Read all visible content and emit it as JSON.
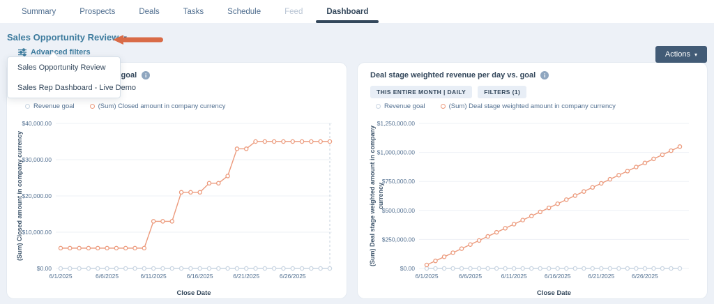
{
  "nav": {
    "tabs": [
      {
        "label": "Summary",
        "state": "normal"
      },
      {
        "label": "Prospects",
        "state": "normal"
      },
      {
        "label": "Deals",
        "state": "normal"
      },
      {
        "label": "Tasks",
        "state": "normal"
      },
      {
        "label": "Schedule",
        "state": "normal"
      },
      {
        "label": "Feed",
        "state": "disabled"
      },
      {
        "label": "Dashboard",
        "state": "active"
      }
    ]
  },
  "toolbar": {
    "dashboard_selector": "Sales Opportunity Review",
    "advanced_filters_label": "Advanced filters",
    "actions_label": "Actions"
  },
  "dropdown": {
    "items": [
      "Sales Opportunity Review",
      "Sales Rep Dashboard - Live Demo"
    ]
  },
  "colors": {
    "annotation_arrow": "#d96b47",
    "series_goal": "#c9d5e2",
    "series_main": "#ec9a7c",
    "navy": "#33475b",
    "link_teal": "#3e7c9e",
    "button_slate": "#425b76"
  },
  "chart_data": [
    {
      "type": "line",
      "title": "Closed revenue per day vs. goal",
      "badges": [],
      "xlabel": "Close Date",
      "ylabel": "(Sum) Closed amount in company currency",
      "ylim": [
        0,
        40000
      ],
      "grid": true,
      "legend_position": "top-left",
      "end_line": true,
      "y_ticks": [
        {
          "value": 0,
          "label": "$0.00"
        },
        {
          "value": 10000,
          "label": "$10,000.00"
        },
        {
          "value": 20000,
          "label": "$20,000.00"
        },
        {
          "value": 30000,
          "label": "$30,000.00"
        },
        {
          "value": 40000,
          "label": "$40,000.00"
        }
      ],
      "x_ticks": [
        {
          "index": 0,
          "label": "6/1/2025"
        },
        {
          "index": 5,
          "label": "6/6/2025"
        },
        {
          "index": 10,
          "label": "6/11/2025"
        },
        {
          "index": 15,
          "label": "6/16/2025"
        },
        {
          "index": 20,
          "label": "6/21/2025"
        },
        {
          "index": 25,
          "label": "6/26/2025"
        }
      ],
      "x_dates": [
        "6/1/2025",
        "6/2/2025",
        "6/3/2025",
        "6/4/2025",
        "6/5/2025",
        "6/6/2025",
        "6/7/2025",
        "6/8/2025",
        "6/9/2025",
        "6/10/2025",
        "6/11/2025",
        "6/12/2025",
        "6/13/2025",
        "6/14/2025",
        "6/15/2025",
        "6/16/2025",
        "6/17/2025",
        "6/18/2025",
        "6/19/2025",
        "6/20/2025",
        "6/21/2025",
        "6/22/2025",
        "6/23/2025",
        "6/24/2025",
        "6/25/2025",
        "6/26/2025",
        "6/27/2025",
        "6/28/2025",
        "6/29/2025",
        "6/30/2025"
      ],
      "series": [
        {
          "name": "Revenue goal",
          "color": "#c9d5e2",
          "values": [
            0,
            0,
            0,
            0,
            0,
            0,
            0,
            0,
            0,
            0,
            0,
            0,
            0,
            0,
            0,
            0,
            0,
            0,
            0,
            0,
            0,
            0,
            0,
            0,
            0,
            0,
            0,
            0,
            0,
            0
          ]
        },
        {
          "name": "(Sum) Closed amount in company currency",
          "color": "#ec9a7c",
          "values": [
            5600,
            5600,
            5600,
            5600,
            5600,
            5600,
            5600,
            5600,
            5600,
            5600,
            13000,
            13000,
            13000,
            21000,
            21000,
            21000,
            23500,
            23500,
            25500,
            33000,
            33000,
            35000,
            35000,
            35000,
            35000,
            35000,
            35000,
            35000,
            35000,
            35000
          ]
        }
      ]
    },
    {
      "type": "line",
      "title": "Deal stage weighted revenue per day vs. goal",
      "badges": [
        "THIS ENTIRE MONTH | DAILY",
        "FILTERS (1)"
      ],
      "xlabel": "Close Date",
      "ylabel": "(Sum) Deal stage weighted amount in company\ncurrency",
      "ylim": [
        0,
        1250000
      ],
      "grid": true,
      "legend_position": "top-left",
      "end_line": false,
      "y_ticks": [
        {
          "value": 0,
          "label": "$0.00"
        },
        {
          "value": 250000,
          "label": "$250,000.00"
        },
        {
          "value": 500000,
          "label": "$500,000.00"
        },
        {
          "value": 750000,
          "label": "$750,000.00"
        },
        {
          "value": 1000000,
          "label": "$1,000,000.00"
        },
        {
          "value": 1250000,
          "label": "$1,250,000.00"
        }
      ],
      "x_ticks": [
        {
          "index": 0,
          "label": "6/1/2025"
        },
        {
          "index": 5,
          "label": "6/6/2025"
        },
        {
          "index": 10,
          "label": "6/11/2025"
        },
        {
          "index": 15,
          "label": "6/16/2025"
        },
        {
          "index": 20,
          "label": "6/21/2025"
        },
        {
          "index": 25,
          "label": "6/26/2025"
        }
      ],
      "x_dates": [
        "6/1/2025",
        "6/2/2025",
        "6/3/2025",
        "6/4/2025",
        "6/5/2025",
        "6/6/2025",
        "6/7/2025",
        "6/8/2025",
        "6/9/2025",
        "6/10/2025",
        "6/11/2025",
        "6/12/2025",
        "6/13/2025",
        "6/14/2025",
        "6/15/2025",
        "6/16/2025",
        "6/17/2025",
        "6/18/2025",
        "6/19/2025",
        "6/20/2025",
        "6/21/2025",
        "6/22/2025",
        "6/23/2025",
        "6/24/2025",
        "6/25/2025",
        "6/26/2025",
        "6/27/2025",
        "6/28/2025",
        "6/29/2025",
        "6/30/2025"
      ],
      "series": [
        {
          "name": "Revenue goal",
          "color": "#c9d5e2",
          "values": [
            0,
            0,
            0,
            0,
            0,
            0,
            0,
            0,
            0,
            0,
            0,
            0,
            0,
            0,
            0,
            0,
            0,
            0,
            0,
            0,
            0,
            0,
            0,
            0,
            0,
            0,
            0,
            0,
            0,
            0
          ]
        },
        {
          "name": "(Sum) Deal stage weighted amount in company currency",
          "color": "#ec9a7c",
          "values": [
            30000,
            65200,
            100300,
            135500,
            170700,
            205900,
            241000,
            276200,
            311400,
            346600,
            381700,
            416900,
            452100,
            487200,
            522400,
            557600,
            592800,
            627900,
            663100,
            698300,
            733400,
            768600,
            803800,
            839000,
            874100,
            909300,
            944500,
            979700,
            1014800,
            1050000
          ]
        }
      ]
    }
  ]
}
